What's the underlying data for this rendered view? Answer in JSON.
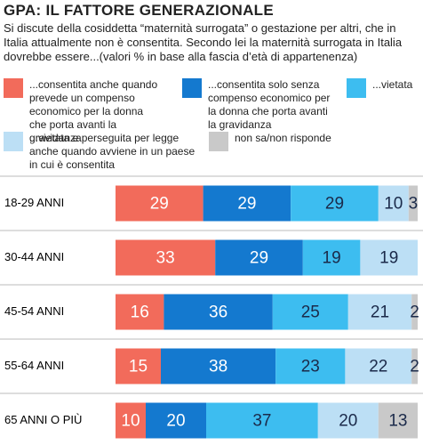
{
  "chart_data": {
    "type": "stacked-bar",
    "title": "GPA: IL FATTORE GENERAZIONALE",
    "subtitle": "Si discute della cosiddetta “maternità surrogata” o gestazione per altri, che in Italia attualmente non è consentita. Secondo lei la maternità surrogata in Italia dovrebbe essere...(valori % in base alla fascia d’età di appartenenza)",
    "categories": [
      "18-29 ANNI",
      "30-44 ANNI",
      "45-54 ANNI",
      "55-64 ANNI",
      "65 ANNI O PIÙ"
    ],
    "xlim": [
      0,
      100
    ],
    "series": [
      {
        "name": "...consentita anche quando prevede un compenso economico per la donna che porta avanti la gravidanza",
        "color": "#f26b5b",
        "values": [
          29,
          33,
          16,
          15,
          10
        ]
      },
      {
        "name": "...consentita solo senza compenso economico per la donna che porta avanti la gravidanza",
        "color": "#1479cf",
        "values": [
          29,
          29,
          36,
          38,
          20
        ]
      },
      {
        "name": "...vietata",
        "color": "#3dbdf0",
        "values": [
          29,
          19,
          25,
          23,
          37
        ]
      },
      {
        "name": "...vietata e perseguita per legge anche quando avviene in un paese in cui è consentita",
        "color": "#bcdff5",
        "values": [
          10,
          19,
          21,
          22,
          20
        ]
      },
      {
        "name": "non sa/non risponde",
        "color": "#c9c9c9",
        "values": [
          3,
          null,
          2,
          2,
          13
        ]
      }
    ]
  }
}
